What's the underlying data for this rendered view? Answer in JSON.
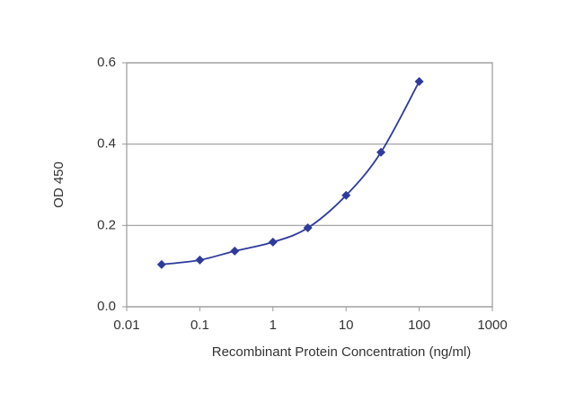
{
  "chart_data": {
    "type": "line",
    "xlabel": "Recombinant Protein Concentration (ng/ml)",
    "ylabel": "OD 450",
    "x": [
      0.03,
      0.1,
      0.3,
      1,
      3,
      10,
      30,
      100
    ],
    "series": [
      {
        "color": "#2e3a9c",
        "values": [
          0.104,
          0.115,
          0.137,
          0.159,
          0.194,
          0.274,
          0.38,
          0.554
        ]
      }
    ],
    "xscale": "log",
    "xlim": [
      0.01,
      1000
    ],
    "xticks": [
      0.01,
      0.1,
      1,
      10,
      100,
      1000
    ],
    "ylim": [
      0,
      0.6
    ],
    "yticks": [
      {
        "value": 0,
        "label": "0.0"
      },
      0.2,
      0.4,
      0.6
    ],
    "grid": true
  }
}
